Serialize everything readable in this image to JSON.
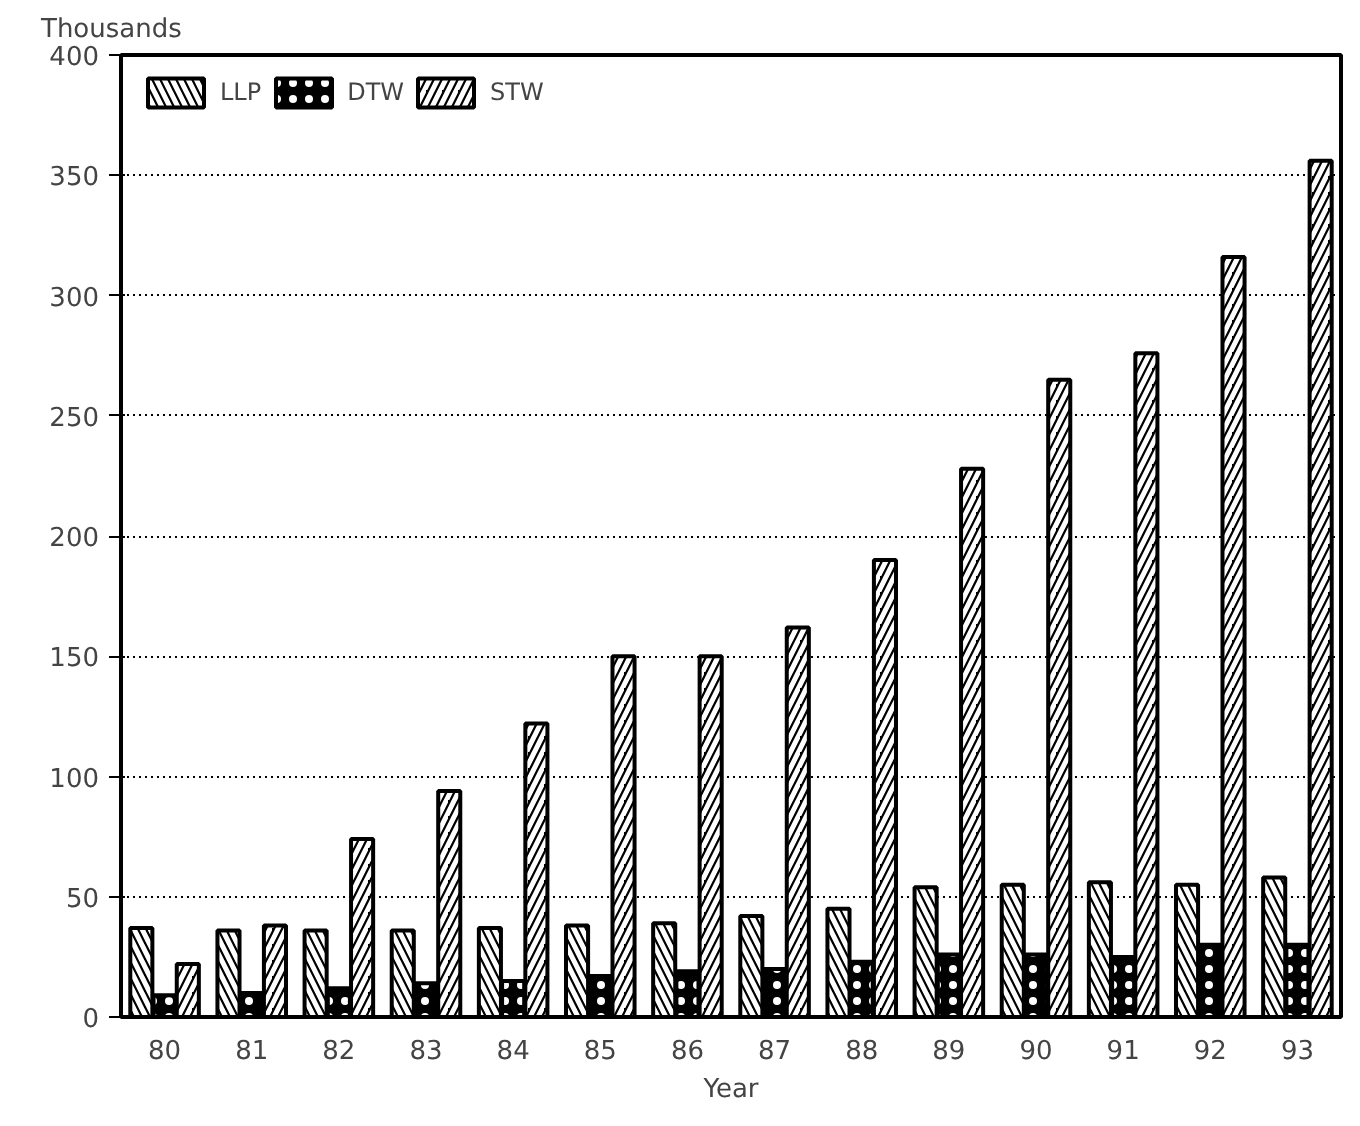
{
  "chart_data": {
    "type": "bar",
    "xlabel": "Year",
    "ylabel": "Thousands",
    "categories": [
      "80",
      "81",
      "82",
      "83",
      "84",
      "85",
      "86",
      "87",
      "88",
      "89",
      "90",
      "91",
      "92",
      "93"
    ],
    "series": [
      {
        "name": "LLP",
        "color": "#000000",
        "values": [
          37,
          36,
          36,
          36,
          37,
          38,
          39,
          42,
          45,
          54,
          55,
          56,
          55,
          58
        ]
      },
      {
        "name": "DTW",
        "color": "#000000",
        "values": [
          9,
          10,
          12,
          14,
          15,
          17,
          19,
          20,
          23,
          26,
          26,
          25,
          30,
          30
        ]
      },
      {
        "name": "STW",
        "color": "#000000",
        "values": [
          22,
          38,
          74,
          94,
          122,
          150,
          150,
          162,
          190,
          228,
          265,
          276,
          316,
          356
        ]
      }
    ],
    "ylim": [
      0,
      400
    ],
    "yticks": [
      0,
      50,
      100,
      150,
      200,
      250,
      300,
      350,
      400
    ],
    "grid": "y",
    "legend": "top left"
  }
}
